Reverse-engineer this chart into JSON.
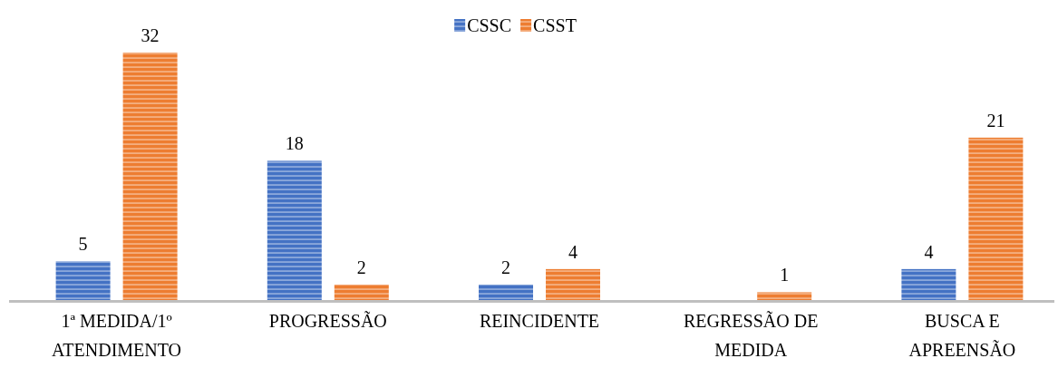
{
  "chart_data": {
    "type": "bar",
    "categories": [
      "1ª MEDIDA/1º ATENDIMENTO",
      "PROGRESSÃO",
      "REINCIDENTE",
      "REGRESSÃO DE MEDIDA",
      "BUSCA E APREENSÃO"
    ],
    "series": [
      {
        "name": "CSSC",
        "color": "#4472c4",
        "values": [
          5,
          18,
          2,
          null,
          4
        ]
      },
      {
        "name": "CSST",
        "color": "#ed7d31",
        "values": [
          32,
          2,
          4,
          1,
          21
        ]
      }
    ],
    "data_labels": true,
    "legend": "top"
  }
}
